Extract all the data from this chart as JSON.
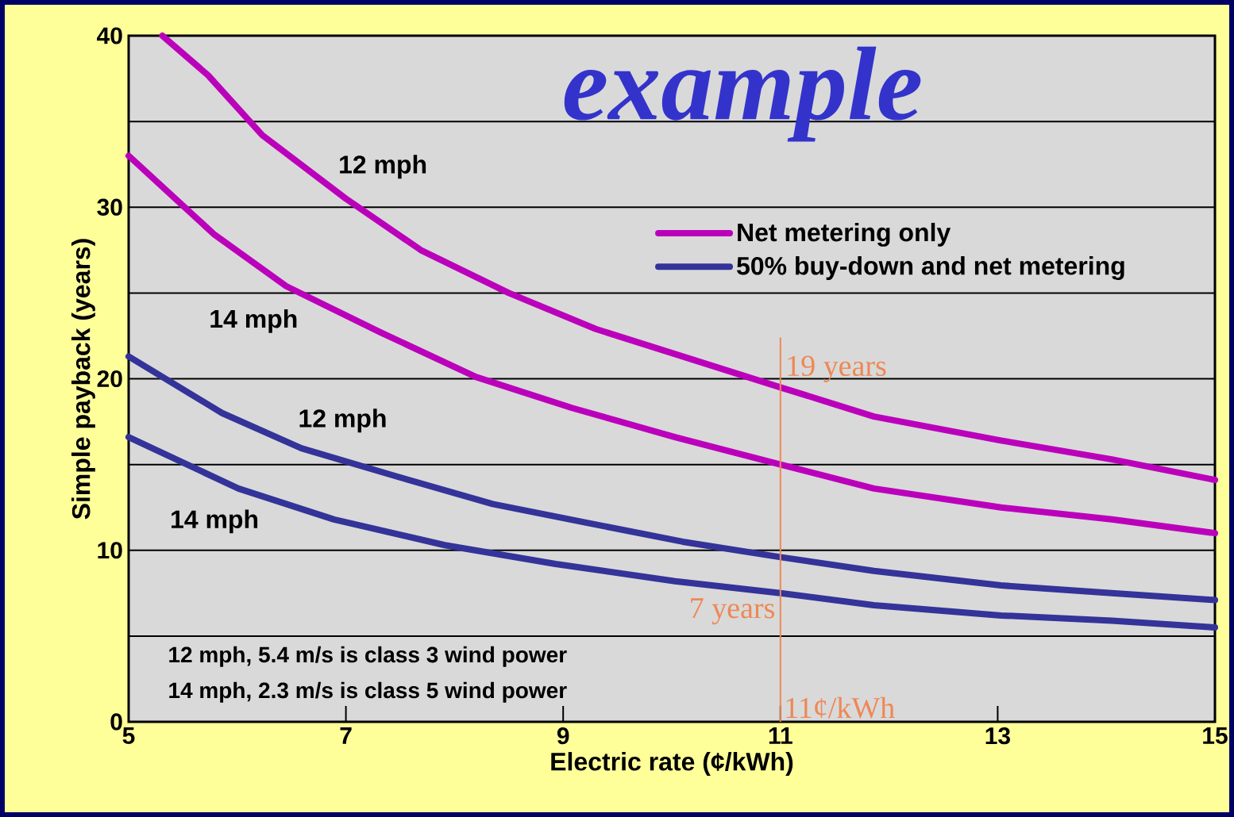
{
  "chart_data": {
    "type": "line",
    "xlabel": "Electric rate (¢/kWh)",
    "ylabel": "Simple payback (years)",
    "xlim": [
      5,
      15
    ],
    "xticks": [
      5,
      7,
      9,
      11,
      13,
      15
    ],
    "ylim": [
      0,
      40
    ],
    "yticks": [
      0,
      {
        "value": 5,
        "label": null
      },
      10,
      {
        "value": 15,
        "label": null
      },
      20,
      {
        "value": 25,
        "label": null
      },
      30,
      {
        "value": 35,
        "label": null
      },
      40
    ],
    "grid": "y",
    "legend": "top right",
    "series": [
      {
        "name": "Net metering only",
        "color": "#bb00bb",
        "x": [
          5.31,
          5.73,
          6.23,
          7.0,
          7.69,
          8.5,
          9.3,
          10.25,
          11,
          11.86,
          13.03,
          14.05,
          15
        ],
        "values": [
          40,
          37.7,
          34.2,
          30.5,
          27.5,
          25.0,
          22.9,
          21.0,
          19.5,
          17.8,
          16.4,
          15.3,
          14.1
        ]
      },
      {
        "color": "#bb00bb",
        "x": [
          5,
          5.79,
          6.45,
          7.32,
          8.2,
          9.08,
          10.03,
          11,
          11.86,
          13.03,
          14.05,
          15
        ],
        "values": [
          33.0,
          28.4,
          25.4,
          22.7,
          20.1,
          18.3,
          16.6,
          15.0,
          13.6,
          12.5,
          11.8,
          11.0
        ]
      },
      {
        "name": "50% buy-down and net metering",
        "color": "#333399",
        "x": [
          5,
          5.86,
          6.59,
          7.47,
          8.35,
          9.22,
          10.1,
          11,
          11.86,
          13.03,
          14.05,
          15
        ],
        "values": [
          21.3,
          18.0,
          15.95,
          14.3,
          12.7,
          11.6,
          10.5,
          9.6,
          8.8,
          7.95,
          7.5,
          7.1
        ]
      },
      {
        "color": "#333399",
        "x": [
          5,
          6.01,
          6.89,
          7.91,
          8.93,
          10.03,
          11,
          11.86,
          13.03,
          14.05,
          15
        ],
        "values": [
          16.6,
          13.6,
          11.8,
          10.3,
          9.2,
          8.2,
          7.5,
          6.8,
          6.2,
          5.9,
          5.5
        ]
      }
    ],
    "ref_lines": [
      {
        "axis": "x",
        "value": 11,
        "label": "11¢/kWh",
        "color": "#ee8855"
      }
    ],
    "annotations": [
      "example",
      "12 mph",
      "14 mph",
      "12 mph",
      "14 mph",
      "12 mph, 5.4 m/s is class 3 wind power",
      "14 mph, 2.3 m/s is class 5 wind power",
      {
        "text": "19 years",
        "x": 11,
        "y": 19.5
      },
      {
        "text": "7 years",
        "x": 11,
        "y": 7.5
      }
    ]
  }
}
